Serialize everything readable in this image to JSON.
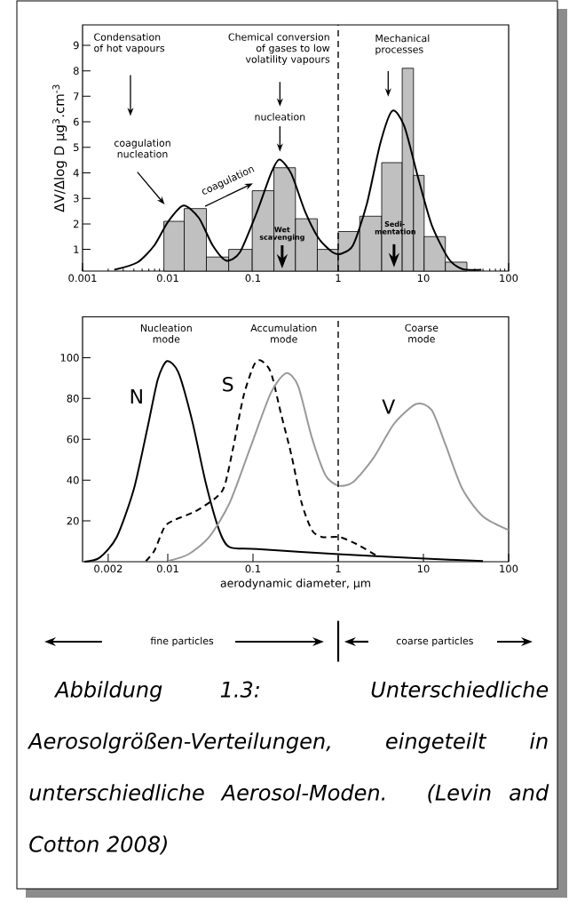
{
  "chart_data": [
    {
      "type": "histogram",
      "ylabel": "ΔV/Δlog D µg$^{3}$.cm$^{-3}$",
      "bins": [
        0.009,
        0.0156,
        0.0284,
        0.0519,
        0.098,
        0.176,
        0.315,
        0.569,
        1.0,
        1.79,
        3.24,
        5.64,
        7.65,
        10.2,
        18.1,
        32.4
      ],
      "values": [
        2.1,
        2.6,
        0.7,
        1.0,
        3.3,
        4.2,
        2.2,
        1.0,
        1.7,
        2.3,
        4.4,
        8.1,
        3.9,
        1.5,
        0.5
      ],
      "color": "#c0c0c0",
      "series": [
        {
          "type": "line",
          "color": "#000000",
          "x": [
            0.00236,
            0.0044,
            0.00697,
            0.0101,
            0.0153,
            0.0232,
            0.0336,
            0.0486,
            0.0703,
            0.112,
            0.162,
            0.204,
            0.282,
            0.408,
            0.59,
            0.855,
            1.08,
            1.49,
            2.16,
            3.12,
            4.31,
            5.96,
            8.63,
            12.5,
            19.8,
            28.7,
            47.8
          ],
          "values": [
            0.2,
            0.49,
            1.16,
            2.09,
            2.72,
            2.23,
            1.16,
            0.56,
            0.89,
            2.49,
            3.96,
            4.52,
            3.96,
            2.49,
            1.43,
            0.89,
            0.83,
            1.16,
            2.76,
            5.16,
            6.43,
            5.83,
            3.83,
            1.96,
            0.63,
            0.23,
            0.2
          ]
        }
      ],
      "xlim": [
        0.001,
        100
      ],
      "ylim": [
        0.15,
        9.8
      ],
      "log": "x",
      "xticks": [
        0.001,
        0.01,
        0.1,
        1,
        10,
        100
      ],
      "yticks": [
        1,
        2,
        3,
        4,
        5,
        6,
        7,
        8,
        9
      ],
      "ref_lines": [
        {
          "axis": "x",
          "value": 1,
          "line_style": "dashed"
        }
      ],
      "annotations": [
        "Condensation of hot vapours",
        "Chemical conversion of gases to low volatility vapours",
        "Mechanical processes",
        "nucleation",
        "coagulation nucleation",
        "coagulation",
        "Wet scavenging",
        "Sedi-mentation"
      ]
    },
    {
      "type": "line",
      "xlabel": "aerodynamic diameter, µm",
      "series": [
        {
          "name": "N",
          "color": "#000000",
          "line_style": "solid",
          "x": [
            0.00105,
            0.00159,
            0.00252,
            0.004,
            0.0058,
            0.00765,
            0.0098,
            0.0133,
            0.0193,
            0.0279,
            0.0404,
            0.0533,
            0.112,
            1.0,
            10.4,
            50.0
          ],
          "values": [
            0,
            2.0,
            12.1,
            35.6,
            65.9,
            89.4,
            98.3,
            92.8,
            69.2,
            38.7,
            15.1,
            7.1,
            6.2,
            3.7,
            1.5,
            0.3
          ]
        },
        {
          "name": "S",
          "color": "#000000",
          "line_style": "dashed",
          "x": [
            0.00553,
            0.00697,
            0.0092,
            0.0121,
            0.0211,
            0.0368,
            0.0465,
            0.0585,
            0.0773,
            0.102,
            0.1225,
            0.162,
            0.213,
            0.282,
            0.372,
            0.491,
            0.647,
            1.03,
            1.63,
            2.84
          ],
          "values": [
            0.3,
            5.4,
            17.1,
            20.5,
            24.7,
            31.4,
            37.3,
            55.8,
            81.0,
            96.1,
            98.7,
            92.8,
            72.6,
            52.4,
            28.9,
            15.5,
            12.1,
            12.1,
            8.7,
            2.9
          ]
        },
        {
          "name": "V",
          "color": "#999999",
          "line_style": "solid",
          "x": [
            0.0101,
            0.0176,
            0.0306,
            0.0533,
            0.0929,
            0.162,
            0.245,
            0.339,
            0.491,
            0.71,
            1.0,
            1.49,
            2.59,
            4.52,
            8.24,
            12.5,
            18.1,
            28.7,
            50.0,
            100
          ],
          "values": [
            0.3,
            3.7,
            12.1,
            28.9,
            55.8,
            82.7,
            92.4,
            86.1,
            60.8,
            42.4,
            37.3,
            39.0,
            50.8,
            67.6,
            77.3,
            74.3,
            57.5,
            35.6,
            22.2,
            15.5
          ]
        }
      ],
      "xlim": [
        0.001,
        100
      ],
      "ylim": [
        0,
        120
      ],
      "log": "x",
      "xticks": [
        0.002,
        0.01,
        0.1,
        1,
        10,
        100
      ],
      "yticks": [
        20,
        40,
        60,
        80,
        100
      ],
      "ref_lines": [
        {
          "axis": "x",
          "value": 1,
          "line_style": "dashed"
        }
      ],
      "annotations": [
        "Nucleation mode",
        "Accumulation mode",
        "Coarse mode",
        "fine particles",
        "coarse particles",
        "Abbildung 1.3: Unterschiedliche Aerosolgrößen-Verteilungen, eingeteilt in unterschiedliche Aerosol-Moden. (Levin and Cotton 2008)"
      ]
    }
  ]
}
